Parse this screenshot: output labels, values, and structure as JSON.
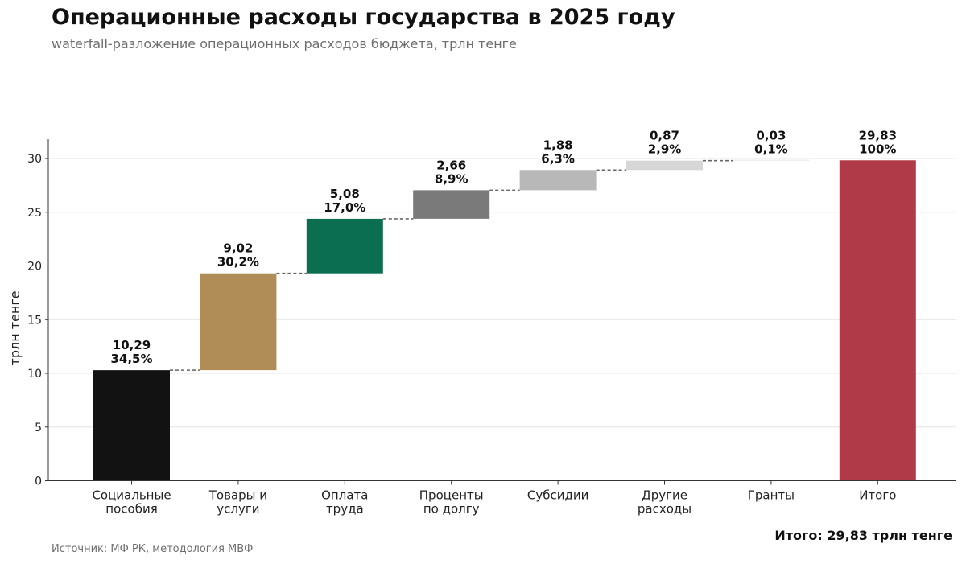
{
  "title": "Операционные расходы государства в 2025 году",
  "subtitle": "waterfall-разложение операционных расходов бюджета, трлн тенге",
  "total_note": "Итого: 29,83 трлн тенге",
  "source": "Источник: МФ РК, методология МВФ",
  "chart_data": {
    "type": "bar",
    "subtype": "waterfall",
    "ylabel": "трлн тенге",
    "ylim": [
      0,
      32
    ],
    "yticks": [
      0,
      5,
      10,
      15,
      20,
      25,
      30
    ],
    "grid": true,
    "categories": [
      [
        "Социальные",
        "пособия"
      ],
      [
        "Товары и",
        "услуги"
      ],
      [
        "Оплата",
        "труда"
      ],
      [
        "Проценты",
        "по долгу"
      ],
      [
        "Субсидии"
      ],
      [
        "Другие",
        "расходы"
      ],
      [
        "Гранты"
      ],
      [
        "Итого"
      ]
    ],
    "values": [
      10.29,
      9.02,
      5.08,
      2.66,
      1.88,
      0.87,
      0.03,
      29.83
    ],
    "value_labels": [
      "10,29",
      "9,02",
      "5,08",
      "2,66",
      "1,88",
      "0,87",
      "0,03",
      "29,83"
    ],
    "share_labels": [
      "34,5%",
      "30,2%",
      "17,0%",
      "8,9%",
      "6,3%",
      "2,9%",
      "0,1%",
      "100%"
    ],
    "is_total": [
      false,
      false,
      false,
      false,
      false,
      false,
      false,
      true
    ],
    "colors": [
      "#121212",
      "#b08c57",
      "#0c6e51",
      "#7a7a7a",
      "#b8b8b8",
      "#d6d6d6",
      "#e6e6e6",
      "#b03a48"
    ]
  }
}
